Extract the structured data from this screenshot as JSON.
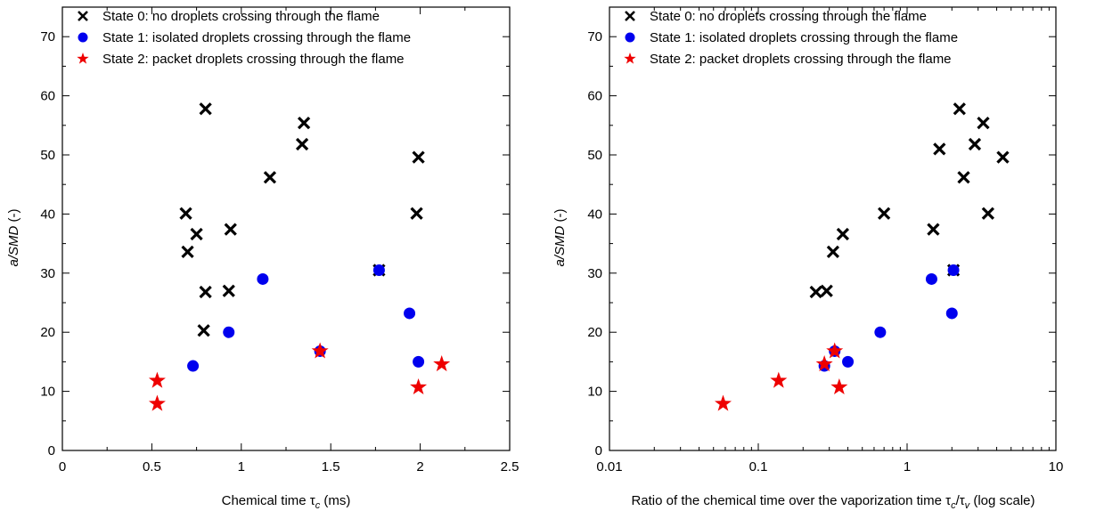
{
  "chart_data": [
    {
      "type": "scatter",
      "xlabel": "Chemical time τc (ms)",
      "xlabel_parts": {
        "pre": "Chemical time τ",
        "sub": "c",
        "post": " (ms)"
      },
      "ylabel_parts": {
        "italic": "a/SMD",
        "post": " (-)"
      },
      "xscale": "linear",
      "xlim": [
        0,
        2.5
      ],
      "ylim": [
        0,
        75
      ],
      "xticks": [
        0,
        0.5,
        1,
        1.5,
        2,
        2.5
      ],
      "xtick_labels": [
        "0",
        "0.5",
        "1",
        "1.5",
        "2",
        "2.5"
      ],
      "yticks": [
        0,
        10,
        20,
        30,
        40,
        50,
        60,
        70
      ],
      "ytick_labels": [
        "0",
        "10",
        "20",
        "30",
        "40",
        "50",
        "60",
        "70"
      ],
      "legend_position": "top",
      "series": [
        {
          "name": "State 0: no droplets crossing through the flame",
          "marker": "x",
          "color": "#000000",
          "points": [
            [
              0.69,
              40.1
            ],
            [
              0.7,
              33.6
            ],
            [
              0.75,
              36.6
            ],
            [
              0.79,
              20.3
            ],
            [
              0.8,
              26.8
            ],
            [
              0.8,
              57.8
            ],
            [
              0.93,
              27.0
            ],
            [
              0.94,
              37.4
            ],
            [
              1.16,
              46.2
            ],
            [
              1.34,
              51.8
            ],
            [
              1.35,
              55.4
            ],
            [
              1.77,
              30.5
            ],
            [
              1.98,
              40.1
            ],
            [
              1.99,
              49.6
            ]
          ]
        },
        {
          "name": "State 1: isolated droplets crossing through the flame",
          "marker": "circle",
          "color": "#0000ee",
          "points": [
            [
              0.73,
              14.3
            ],
            [
              0.93,
              20.0
            ],
            [
              1.12,
              29.0
            ],
            [
              1.44,
              16.8
            ],
            [
              1.77,
              30.5
            ],
            [
              1.94,
              23.2
            ],
            [
              1.99,
              15.0
            ]
          ]
        },
        {
          "name": "State 2: packet droplets crossing through the flame",
          "marker": "star",
          "color": "#ee0000",
          "points": [
            [
              0.53,
              11.8
            ],
            [
              0.53,
              7.9
            ],
            [
              1.44,
              16.8
            ],
            [
              1.99,
              10.7
            ],
            [
              2.12,
              14.6
            ]
          ]
        }
      ]
    },
    {
      "type": "scatter",
      "xlabel": "Ratio of the chemical time over the vaporization time τc/τv (log scale)",
      "xlabel_parts": {
        "pre": "Ratio of the chemical time over the vaporization time τ",
        "sub": "c",
        "mid": "/τ",
        "sub2": "v",
        "post": " (log scale)"
      },
      "ylabel_parts": {
        "italic": "a/SMD",
        "post": " (-)"
      },
      "xscale": "log",
      "xlim": [
        0.01,
        10
      ],
      "ylim": [
        0,
        75
      ],
      "xticks": [
        0.01,
        0.1,
        1,
        10
      ],
      "xtick_labels": [
        "0.01",
        "0.1",
        "1",
        "10"
      ],
      "yticks": [
        0,
        10,
        20,
        30,
        40,
        50,
        60,
        70
      ],
      "ytick_labels": [
        "0",
        "10",
        "20",
        "30",
        "40",
        "50",
        "60",
        "70"
      ],
      "legend_position": "top",
      "series": [
        {
          "name": "State 0: no droplets crossing through the flame",
          "marker": "x",
          "color": "#000000",
          "points": [
            [
              0.244,
              26.8
            ],
            [
              0.288,
              27.0
            ],
            [
              0.318,
              33.6
            ],
            [
              0.37,
              36.6
            ],
            [
              0.7,
              40.1
            ],
            [
              1.5,
              37.4
            ],
            [
              1.65,
              51.0
            ],
            [
              2.05,
              30.5
            ],
            [
              2.25,
              57.8
            ],
            [
              2.4,
              46.2
            ],
            [
              2.85,
              51.8
            ],
            [
              3.25,
              55.4
            ],
            [
              3.5,
              40.1
            ],
            [
              4.4,
              49.6
            ]
          ]
        },
        {
          "name": "State 1: isolated droplets crossing through the flame",
          "marker": "circle",
          "color": "#0000ee",
          "points": [
            [
              0.278,
              14.3
            ],
            [
              0.326,
              16.8
            ],
            [
              0.4,
              15.0
            ],
            [
              0.66,
              20.0
            ],
            [
              1.46,
              29.0
            ],
            [
              2.0,
              23.2
            ],
            [
              2.05,
              30.5
            ]
          ]
        },
        {
          "name": "State 2: packet droplets crossing through the flame",
          "marker": "star",
          "color": "#ee0000",
          "points": [
            [
              0.058,
              7.9
            ],
            [
              0.137,
              11.8
            ],
            [
              0.278,
              14.6
            ],
            [
              0.326,
              16.8
            ],
            [
              0.35,
              10.7
            ]
          ]
        }
      ]
    }
  ]
}
